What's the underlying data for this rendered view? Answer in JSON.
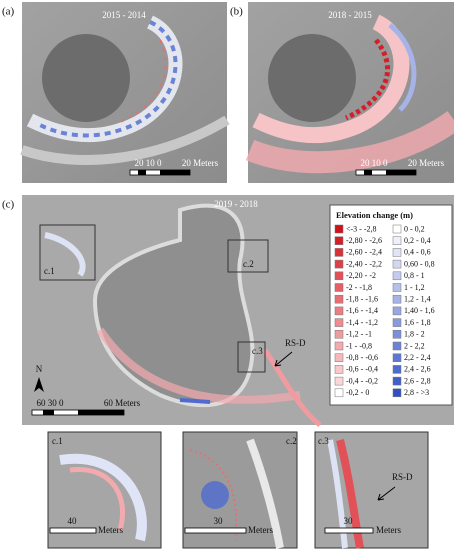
{
  "panels": {
    "a": {
      "label": "(a)",
      "title": "2015 - 2014",
      "scale_numbers": "20 10 0",
      "scale_unit": "20 Meters"
    },
    "b": {
      "label": "(b)",
      "title": "2018 - 2015",
      "scale_numbers": "20 10 0",
      "scale_unit": "20 Meters"
    },
    "c": {
      "label": "(c)",
      "title": "2019 - 2018",
      "north": "N",
      "scale_numbers": "60 30 0",
      "scale_unit": "60 Meters",
      "boxes": [
        "c.1",
        "c.2",
        "c.3"
      ],
      "pointer": "RS-D"
    }
  },
  "legend": {
    "title": "Elevation change (m)",
    "negative": [
      {
        "label": "<-3 - -2,8",
        "color": "#d0101a"
      },
      {
        "label": "-2,80 - -2,6",
        "color": "#d51f28"
      },
      {
        "label": "-2,60 - -2,4",
        "color": "#da3038"
      },
      {
        "label": "-2,40 - -2,2",
        "color": "#de4048"
      },
      {
        "label": "-2,20 - -2",
        "color": "#e25058"
      },
      {
        "label": "-2 - -1,8",
        "color": "#e55f66"
      },
      {
        "label": "-1,8 - -1,6",
        "color": "#e86e75"
      },
      {
        "label": "-1,6 - -1,4",
        "color": "#eb7d83"
      },
      {
        "label": "-1,4 - -1,2",
        "color": "#ee8c91"
      },
      {
        "label": "-1,2 - -1",
        "color": "#f09ba0"
      },
      {
        "label": "-1 - -0,8",
        "color": "#f3aaae"
      },
      {
        "label": "-0,8 - -0,6",
        "color": "#f5b9bc"
      },
      {
        "label": "-0,6 - -0,4",
        "color": "#f8c8ca"
      },
      {
        "label": "-0,4 - -0,2",
        "color": "#fad7d8"
      },
      {
        "label": "-0,2 - 0",
        "color": "#ffffff"
      }
    ],
    "positive": [
      {
        "label": "0 - 0,2",
        "color": "#ffffff"
      },
      {
        "label": "0,2 - 0,4",
        "color": "#eef0fb"
      },
      {
        "label": "0,4 - 0,6",
        "color": "#e0e4f7"
      },
      {
        "label": "0,60 - 0,8",
        "color": "#d2d8f3"
      },
      {
        "label": "0,8 - 1",
        "color": "#c3ccef"
      },
      {
        "label": "1 - 1,2",
        "color": "#b5c0eb"
      },
      {
        "label": "1,2 - 1,4",
        "color": "#a6b3e7"
      },
      {
        "label": "1,40 - 1,6",
        "color": "#98a7e3"
      },
      {
        "label": "1,6 - 1,8",
        "color": "#899bdf"
      },
      {
        "label": "1,8 - 2",
        "color": "#7b8fdb"
      },
      {
        "label": "2 - 2,2",
        "color": "#6c83d7"
      },
      {
        "label": "2,2 - 2,4",
        "color": "#5e77d3"
      },
      {
        "label": "2,4 - 2,6",
        "color": "#4f6bcf"
      },
      {
        "label": "2,6 - 2,8",
        "color": "#415fcb"
      },
      {
        "label": "2,8 - >3",
        "color": "#2f50c4"
      }
    ]
  },
  "insets": [
    {
      "label": "c.1",
      "scale_number": "40",
      "scale_unit": "Meters"
    },
    {
      "label": "c.2",
      "scale_number": "30",
      "scale_unit": "Meters"
    },
    {
      "label": "c.3",
      "pointer": "RS-D",
      "scale_number": "30",
      "scale_unit": "Meters"
    }
  ]
}
